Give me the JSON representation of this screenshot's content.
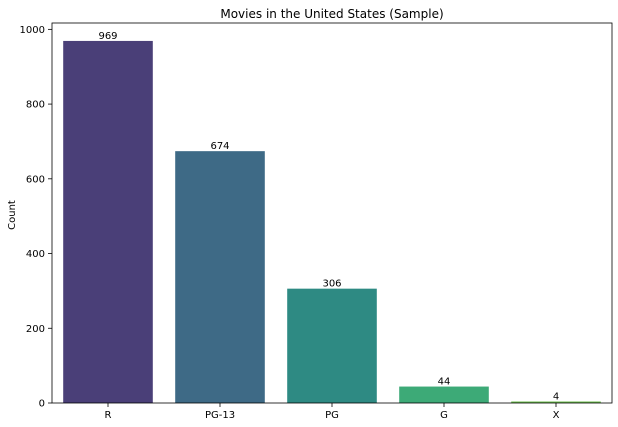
{
  "chart_data": {
    "type": "bar",
    "title": "Movies in the United States (Sample)",
    "xlabel": "",
    "ylabel": "Count",
    "categories": [
      "R",
      "PG-13",
      "PG",
      "G",
      "X"
    ],
    "values": [
      969,
      674,
      306,
      44,
      4
    ],
    "data_labels": [
      "969",
      "674",
      "306",
      "44",
      "4"
    ],
    "colors": [
      "#4a3f78",
      "#3e6a86",
      "#2e8a83",
      "#3daa77",
      "#6cbf4c"
    ],
    "ylim": [
      0,
      1017
    ],
    "yticks": [
      0,
      200,
      400,
      600,
      800,
      1000
    ],
    "grid": false,
    "legend": "none"
  }
}
